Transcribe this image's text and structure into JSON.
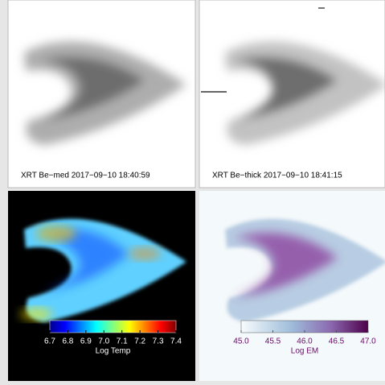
{
  "panels": [
    {
      "caption": "XRT Be−med 2017−09−10 18:40:59"
    },
    {
      "caption": "XRT Be−thick 2017−09−10 18:41:15"
    },
    {
      "colorbar": {
        "label": "Log Temp",
        "ticks": [
          "6.7",
          "6.8",
          "6.9",
          "7.0",
          "7.1",
          "7.2",
          "7.3",
          "7.4"
        ]
      }
    },
    {
      "colorbar": {
        "label": "Log EM",
        "ticks": [
          "45.0",
          "45.5",
          "46.0",
          "46.5",
          "47.0"
        ]
      }
    }
  ]
}
